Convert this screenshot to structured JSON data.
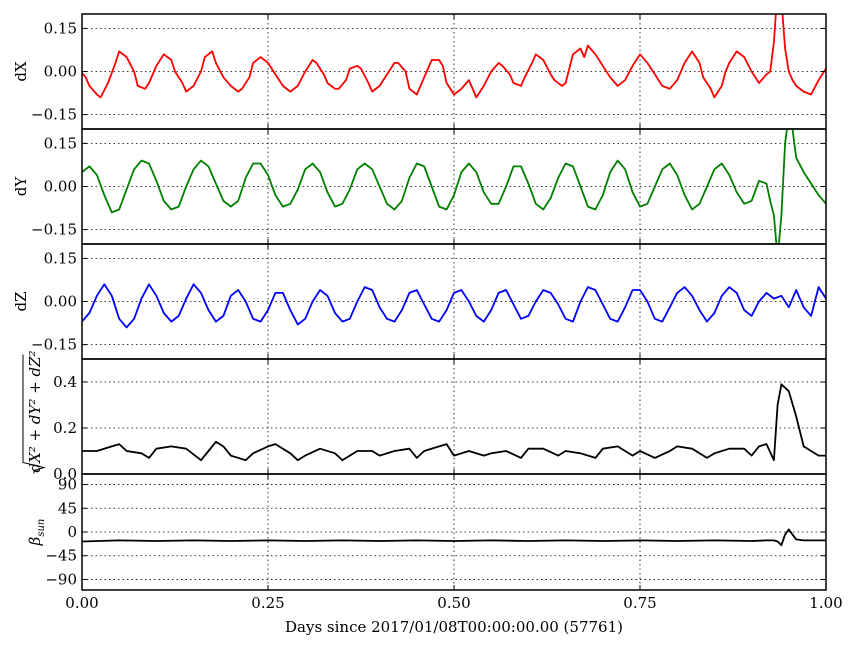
{
  "chart_data": [
    {
      "type": "line",
      "ylabel": "dX",
      "xlim": [
        0.0,
        1.0
      ],
      "ylim": [
        -0.2,
        0.2
      ],
      "yticks": [
        0.15,
        0.0,
        -0.15
      ],
      "ytick_labels": [
        "0.15",
        "0.00",
        "−0.15"
      ],
      "xticks": [
        0.0,
        0.25,
        0.5,
        0.75,
        1.0
      ],
      "grid": true,
      "series": [
        {
          "color": "#ff0000",
          "x": [
            0,
            0.005,
            0.01,
            0.02,
            0.025,
            0.035,
            0.045,
            0.05,
            0.06,
            0.07,
            0.075,
            0.085,
            0.09,
            0.1,
            0.11,
            0.12,
            0.125,
            0.135,
            0.14,
            0.15,
            0.16,
            0.165,
            0.175,
            0.18,
            0.19,
            0.2,
            0.21,
            0.215,
            0.225,
            0.23,
            0.24,
            0.25,
            0.26,
            0.27,
            0.28,
            0.29,
            0.3,
            0.31,
            0.315,
            0.325,
            0.33,
            0.34,
            0.345,
            0.355,
            0.36,
            0.37,
            0.375,
            0.385,
            0.39,
            0.4,
            0.41,
            0.42,
            0.425,
            0.435,
            0.44,
            0.45,
            0.455,
            0.465,
            0.47,
            0.48,
            0.485,
            0.49,
            0.5,
            0.51,
            0.52,
            0.53,
            0.54,
            0.55,
            0.56,
            0.565,
            0.575,
            0.58,
            0.59,
            0.595,
            0.605,
            0.61,
            0.62,
            0.63,
            0.635,
            0.645,
            0.65,
            0.66,
            0.67,
            0.675,
            0.68,
            0.69,
            0.7,
            0.71,
            0.72,
            0.73,
            0.74,
            0.75,
            0.76,
            0.77,
            0.78,
            0.79,
            0.8,
            0.81,
            0.82,
            0.83,
            0.835,
            0.845,
            0.85,
            0.86,
            0.865,
            0.87,
            0.88,
            0.89,
            0.9,
            0.91,
            0.92,
            0.925,
            0.93,
            0.933,
            0.936,
            0.94,
            0.945,
            0.95,
            0.955,
            0.96,
            0.97,
            0.98,
            0.99,
            1.0
          ],
          "y": [
            -0.005,
            -0.02,
            -0.05,
            -0.08,
            -0.09,
            -0.04,
            0.03,
            0.07,
            0.05,
            0.0,
            -0.05,
            -0.06,
            -0.04,
            0.02,
            0.06,
            0.04,
            0.0,
            -0.04,
            -0.07,
            -0.05,
            0.0,
            0.05,
            0.07,
            0.03,
            -0.02,
            -0.05,
            -0.07,
            -0.06,
            -0.02,
            0.03,
            0.05,
            0.03,
            -0.01,
            -0.05,
            -0.07,
            -0.05,
            0.0,
            0.04,
            0.03,
            -0.01,
            -0.04,
            -0.06,
            -0.06,
            -0.03,
            0.01,
            0.02,
            0.01,
            -0.04,
            -0.07,
            -0.05,
            -0.01,
            0.03,
            0.03,
            0.0,
            -0.06,
            -0.08,
            -0.05,
            0.01,
            0.04,
            0.04,
            0.02,
            -0.04,
            -0.08,
            -0.06,
            -0.03,
            -0.09,
            -0.05,
            0.0,
            0.03,
            0.02,
            -0.01,
            -0.04,
            -0.05,
            -0.02,
            0.03,
            0.06,
            0.04,
            -0.01,
            -0.03,
            -0.05,
            -0.04,
            0.06,
            0.08,
            0.05,
            0.09,
            0.06,
            0.02,
            -0.02,
            -0.05,
            -0.03,
            0.02,
            0.06,
            0.03,
            -0.01,
            -0.05,
            -0.06,
            -0.03,
            0.03,
            0.07,
            0.03,
            -0.02,
            -0.06,
            -0.09,
            -0.05,
            0.0,
            0.03,
            0.07,
            0.05,
            0.0,
            -0.04,
            -0.01,
            0.0,
            0.1,
            0.22,
            0.25,
            0.25,
            0.08,
            0.0,
            -0.03,
            -0.05,
            -0.07,
            -0.08,
            -0.03,
            0.01
          ]
        }
      ]
    },
    {
      "type": "line",
      "ylabel": "dY",
      "xlim": [
        0.0,
        1.0
      ],
      "ylim": [
        -0.2,
        0.2
      ],
      "yticks": [
        0.15,
        0.0,
        -0.15
      ],
      "ytick_labels": [
        "0.15",
        "0.00",
        "−0.15"
      ],
      "xticks": [
        0.0,
        0.25,
        0.5,
        0.75,
        1.0
      ],
      "grid": true,
      "series": [
        {
          "color": "#008000",
          "x": [
            0,
            0.01,
            0.02,
            0.03,
            0.04,
            0.05,
            0.06,
            0.07,
            0.08,
            0.09,
            0.1,
            0.11,
            0.12,
            0.13,
            0.14,
            0.15,
            0.16,
            0.17,
            0.18,
            0.19,
            0.2,
            0.21,
            0.22,
            0.23,
            0.24,
            0.25,
            0.26,
            0.27,
            0.28,
            0.29,
            0.3,
            0.31,
            0.32,
            0.33,
            0.34,
            0.35,
            0.36,
            0.37,
            0.38,
            0.39,
            0.4,
            0.41,
            0.42,
            0.43,
            0.44,
            0.45,
            0.46,
            0.47,
            0.48,
            0.49,
            0.5,
            0.51,
            0.52,
            0.53,
            0.54,
            0.55,
            0.56,
            0.57,
            0.58,
            0.59,
            0.6,
            0.61,
            0.62,
            0.63,
            0.64,
            0.65,
            0.66,
            0.67,
            0.68,
            0.69,
            0.7,
            0.71,
            0.72,
            0.73,
            0.74,
            0.75,
            0.76,
            0.77,
            0.78,
            0.79,
            0.8,
            0.81,
            0.82,
            0.83,
            0.84,
            0.85,
            0.86,
            0.87,
            0.88,
            0.89,
            0.9,
            0.91,
            0.92,
            0.925,
            0.93,
            0.935,
            0.94,
            0.945,
            0.95,
            0.955,
            0.96,
            0.97,
            0.98,
            0.99,
            1.0
          ],
          "y": [
            0.05,
            0.07,
            0.04,
            -0.03,
            -0.09,
            -0.08,
            -0.01,
            0.06,
            0.09,
            0.08,
            0.02,
            -0.05,
            -0.08,
            -0.07,
            0.0,
            0.06,
            0.09,
            0.07,
            0.01,
            -0.05,
            -0.07,
            -0.05,
            0.03,
            0.08,
            0.08,
            0.04,
            -0.03,
            -0.07,
            -0.06,
            -0.01,
            0.06,
            0.08,
            0.05,
            -0.02,
            -0.07,
            -0.06,
            -0.01,
            0.06,
            0.08,
            0.06,
            0.0,
            -0.06,
            -0.08,
            -0.05,
            0.03,
            0.08,
            0.07,
            0.0,
            -0.07,
            -0.08,
            -0.03,
            0.05,
            0.08,
            0.05,
            -0.02,
            -0.06,
            -0.06,
            0.0,
            0.07,
            0.07,
            0.01,
            -0.06,
            -0.08,
            -0.04,
            0.03,
            0.08,
            0.07,
            0.0,
            -0.07,
            -0.08,
            -0.03,
            0.05,
            0.09,
            0.06,
            -0.02,
            -0.07,
            -0.06,
            0.0,
            0.06,
            0.08,
            0.04,
            -0.03,
            -0.08,
            -0.06,
            0.0,
            0.06,
            0.08,
            0.04,
            -0.02,
            -0.06,
            -0.05,
            0.02,
            0.01,
            -0.05,
            -0.1,
            -0.25,
            -0.1,
            0.15,
            0.25,
            0.2,
            0.1,
            0.05,
            0.01,
            -0.03,
            -0.06
          ]
        }
      ]
    },
    {
      "type": "line",
      "ylabel": "dZ",
      "xlim": [
        0.0,
        1.0
      ],
      "ylim": [
        -0.2,
        0.2
      ],
      "yticks": [
        0.15,
        0.0,
        -0.15
      ],
      "ytick_labels": [
        "0.15",
        "0.00",
        "−0.15"
      ],
      "xticks": [
        0.0,
        0.25,
        0.5,
        0.75,
        1.0
      ],
      "grid": true,
      "series": [
        {
          "color": "#0000ff",
          "x": [
            0,
            0.01,
            0.02,
            0.03,
            0.04,
            0.05,
            0.06,
            0.07,
            0.08,
            0.09,
            0.1,
            0.11,
            0.12,
            0.13,
            0.14,
            0.15,
            0.16,
            0.17,
            0.18,
            0.19,
            0.2,
            0.21,
            0.22,
            0.23,
            0.24,
            0.25,
            0.26,
            0.27,
            0.28,
            0.29,
            0.3,
            0.31,
            0.32,
            0.33,
            0.34,
            0.35,
            0.36,
            0.37,
            0.38,
            0.39,
            0.4,
            0.41,
            0.42,
            0.43,
            0.44,
            0.45,
            0.46,
            0.47,
            0.48,
            0.49,
            0.5,
            0.51,
            0.52,
            0.53,
            0.54,
            0.55,
            0.56,
            0.57,
            0.58,
            0.59,
            0.6,
            0.61,
            0.62,
            0.63,
            0.64,
            0.65,
            0.66,
            0.67,
            0.68,
            0.69,
            0.7,
            0.71,
            0.72,
            0.73,
            0.74,
            0.75,
            0.76,
            0.77,
            0.78,
            0.79,
            0.8,
            0.81,
            0.82,
            0.83,
            0.84,
            0.85,
            0.86,
            0.87,
            0.88,
            0.89,
            0.9,
            0.91,
            0.92,
            0.93,
            0.94,
            0.95,
            0.96,
            0.97,
            0.98,
            0.99,
            1.0
          ],
          "y": [
            -0.07,
            -0.04,
            0.02,
            0.06,
            0.02,
            -0.06,
            -0.09,
            -0.06,
            0.01,
            0.06,
            0.02,
            -0.04,
            -0.07,
            -0.05,
            0.01,
            0.06,
            0.03,
            -0.03,
            -0.07,
            -0.05,
            0.02,
            0.04,
            0.0,
            -0.06,
            -0.07,
            -0.03,
            0.03,
            0.03,
            -0.03,
            -0.08,
            -0.06,
            0.0,
            0.04,
            0.02,
            -0.04,
            -0.07,
            -0.06,
            0.0,
            0.05,
            0.04,
            -0.02,
            -0.06,
            -0.07,
            -0.03,
            0.03,
            0.04,
            -0.01,
            -0.06,
            -0.07,
            -0.03,
            0.03,
            0.04,
            0.0,
            -0.05,
            -0.07,
            -0.03,
            0.03,
            0.04,
            -0.01,
            -0.06,
            -0.05,
            0.0,
            0.04,
            0.03,
            -0.01,
            -0.06,
            -0.07,
            0.0,
            0.05,
            0.04,
            -0.01,
            -0.06,
            -0.07,
            -0.02,
            0.04,
            0.04,
            0.0,
            -0.06,
            -0.07,
            -0.02,
            0.03,
            0.05,
            0.02,
            -0.03,
            -0.07,
            -0.04,
            0.02,
            0.05,
            0.03,
            -0.03,
            -0.05,
            0.0,
            0.03,
            0.01,
            0.02,
            -0.02,
            0.04,
            -0.02,
            -0.05,
            0.05,
            0.01
          ]
        }
      ]
    },
    {
      "type": "line",
      "ylabel": "√(dX² + dY² + dZ²)",
      "xlim": [
        0.0,
        1.0
      ],
      "ylim": [
        0.0,
        0.5
      ],
      "yticks": [
        0.4,
        0.2,
        0.0
      ],
      "ytick_labels": [
        "0.4",
        "0.2",
        "0.0"
      ],
      "xticks": [
        0.0,
        0.25,
        0.5,
        0.75,
        1.0
      ],
      "grid": true,
      "series": [
        {
          "color": "#000000",
          "x": [
            0,
            0.02,
            0.04,
            0.05,
            0.06,
            0.08,
            0.09,
            0.1,
            0.12,
            0.14,
            0.16,
            0.17,
            0.18,
            0.19,
            0.2,
            0.22,
            0.23,
            0.25,
            0.26,
            0.28,
            0.29,
            0.3,
            0.32,
            0.34,
            0.35,
            0.37,
            0.39,
            0.4,
            0.42,
            0.44,
            0.45,
            0.46,
            0.48,
            0.49,
            0.5,
            0.52,
            0.54,
            0.55,
            0.57,
            0.59,
            0.6,
            0.62,
            0.64,
            0.65,
            0.67,
            0.69,
            0.7,
            0.72,
            0.74,
            0.75,
            0.77,
            0.79,
            0.8,
            0.82,
            0.84,
            0.85,
            0.87,
            0.89,
            0.9,
            0.91,
            0.92,
            0.93,
            0.935,
            0.94,
            0.95,
            0.96,
            0.97,
            0.98,
            0.99,
            1.0
          ],
          "y": [
            0.1,
            0.1,
            0.12,
            0.13,
            0.1,
            0.09,
            0.07,
            0.11,
            0.12,
            0.11,
            0.06,
            0.1,
            0.14,
            0.12,
            0.08,
            0.06,
            0.09,
            0.12,
            0.13,
            0.09,
            0.06,
            0.08,
            0.11,
            0.09,
            0.06,
            0.1,
            0.1,
            0.08,
            0.1,
            0.11,
            0.07,
            0.1,
            0.12,
            0.13,
            0.08,
            0.1,
            0.08,
            0.09,
            0.1,
            0.07,
            0.11,
            0.11,
            0.08,
            0.1,
            0.09,
            0.07,
            0.11,
            0.12,
            0.08,
            0.1,
            0.07,
            0.1,
            0.12,
            0.11,
            0.07,
            0.09,
            0.11,
            0.11,
            0.08,
            0.12,
            0.13,
            0.06,
            0.3,
            0.39,
            0.36,
            0.25,
            0.12,
            0.1,
            0.08,
            0.08
          ]
        }
      ]
    },
    {
      "type": "line",
      "ylabel": "βsun",
      "xlabel": "Days since 2017/01/08T00:00:00.00 (57761)",
      "xlim": [
        0.0,
        1.0
      ],
      "ylim": [
        -110,
        110
      ],
      "yticks": [
        90,
        45,
        0,
        -45,
        -90
      ],
      "ytick_labels": [
        "90",
        "45",
        "0",
        "−45",
        "−90"
      ],
      "xticks": [
        0.0,
        0.25,
        0.5,
        0.75,
        1.0
      ],
      "xtick_labels": [
        "0.00",
        "0.25",
        "0.50",
        "0.75",
        "1.00"
      ],
      "grid": true,
      "series": [
        {
          "color": "#000000",
          "x": [
            0,
            0.05,
            0.1,
            0.15,
            0.2,
            0.25,
            0.3,
            0.35,
            0.4,
            0.45,
            0.5,
            0.55,
            0.6,
            0.65,
            0.7,
            0.75,
            0.8,
            0.85,
            0.9,
            0.92,
            0.93,
            0.935,
            0.94,
            0.945,
            0.95,
            0.955,
            0.96,
            0.97,
            0.98,
            1.0
          ],
          "y": [
            -18,
            -16,
            -17,
            -16,
            -17,
            -16,
            -17,
            -16,
            -17,
            -16,
            -17,
            -16,
            -17,
            -16,
            -17,
            -16,
            -17,
            -16,
            -17,
            -16,
            -16,
            -18,
            -25,
            -5,
            5,
            -5,
            -14,
            -16,
            -16,
            -16
          ]
        }
      ]
    }
  ]
}
